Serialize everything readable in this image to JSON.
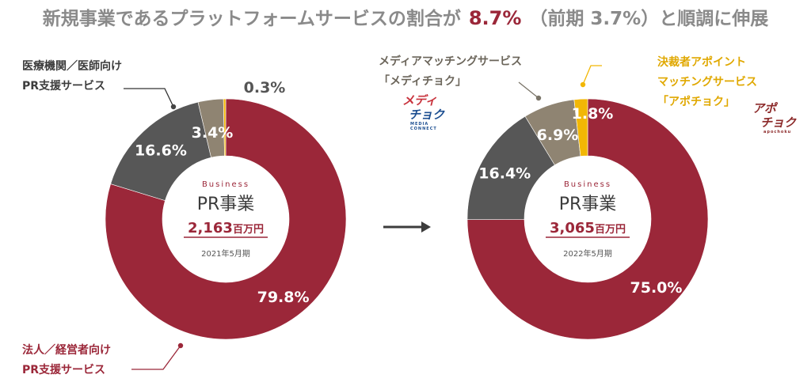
{
  "headline": {
    "prefix": "新規事業であるプラットフォームサービスの割合が",
    "value": "8.7%",
    "paren": "（前期 3.7%）",
    "suffix": "と順調に伸展"
  },
  "logos": {
    "media": {
      "line1": "メディ",
      "line2": "チョク",
      "sub": "MEDIA CONNECT"
    },
    "apo": {
      "line1": "アポ",
      "line2": "チョク",
      "sub": "apochoku"
    }
  },
  "colors": {
    "corporate": "#9b2739",
    "medical": "#575757",
    "media": "#8f8472",
    "apo": "#f2b705",
    "accent": "#9b2739",
    "text": "#3c3c3c"
  },
  "chart_data": [
    {
      "type": "pie",
      "period": "2021年5月期",
      "center_caption": "Business",
      "center_title": "PR事業",
      "total_value": "2,163",
      "total_unit": "百万円",
      "slices": [
        {
          "name": "法人／経営者向けPR支援サービス",
          "value": 79.8,
          "label": "79.8%"
        },
        {
          "name": "医療機関／医師向けPR支援サービス",
          "value": 16.6,
          "label": "16.6%"
        },
        {
          "name": "メディアマッチングサービス「メディチョク」",
          "value": 3.4,
          "label": "3.4%"
        },
        {
          "name": "決裁者アポイントマッチングサービス「アポチョク」",
          "value": 0.3,
          "label": "0.3%"
        }
      ],
      "callouts": [
        {
          "slice": "医療機関／医師向けPR支援サービス",
          "lines": [
            "医療機関／医師向け",
            "PR支援サービス"
          ]
        },
        {
          "slice": "法人／経営者向けPR支援サービス",
          "lines": [
            "法人／経営者向け",
            "PR支援サービス"
          ]
        }
      ]
    },
    {
      "type": "pie",
      "period": "2022年5月期",
      "center_caption": "Business",
      "center_title": "PR事業",
      "total_value": "3,065",
      "total_unit": "百万円",
      "slices": [
        {
          "name": "法人／経営者向けPR支援サービス",
          "value": 75.0,
          "label": "75.0%"
        },
        {
          "name": "医療機関／医師向けPR支援サービス",
          "value": 16.4,
          "label": "16.4%"
        },
        {
          "name": "メディアマッチングサービス「メディチョク」",
          "value": 6.9,
          "label": "6.9%"
        },
        {
          "name": "決裁者アポイントマッチングサービス「アポチョク」",
          "value": 1.8,
          "label": "1.8%"
        }
      ],
      "callouts": [
        {
          "slice": "メディアマッチングサービス「メディチョク」",
          "lines": [
            "メディアマッチングサービス",
            "「メディチョク」"
          ]
        },
        {
          "slice": "決裁者アポイントマッチングサービス「アポチョク」",
          "lines": [
            "決裁者アポイント",
            "マッチングサービス",
            "「アポチョク」"
          ]
        }
      ]
    }
  ]
}
